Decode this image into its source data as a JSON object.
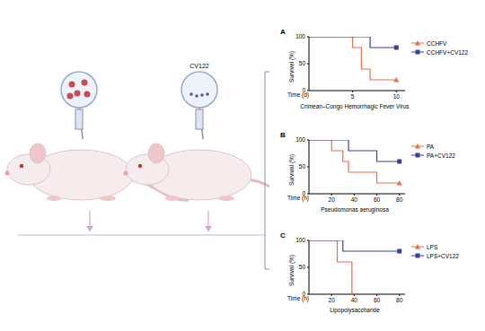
{
  "illustration": {
    "label": "CV122"
  },
  "chart_data": [
    {
      "type": "line",
      "panel_label": "A",
      "title": "Crimean–Congo Hemorrhagic Fever Virus",
      "xlabel": "Time (d)",
      "ylabel": "Survival (%)",
      "line_style": "step",
      "legend": "right",
      "xlim": [
        0,
        11
      ],
      "xticks": [
        5,
        10
      ],
      "ylim": [
        0,
        100
      ],
      "yticks": [
        0,
        50,
        100
      ],
      "series": [
        {
          "name": "CCHFV",
          "color": "#f26b4a",
          "marker": "triangle",
          "x": [
            0,
            5,
            6,
            7,
            10
          ],
          "values": [
            100,
            80,
            40,
            20,
            20
          ]
        },
        {
          "name": "CCHFV+CV122",
          "color": "#3d3f9b",
          "marker": "square",
          "x": [
            0,
            7,
            10
          ],
          "values": [
            100,
            80,
            80
          ]
        }
      ]
    },
    {
      "type": "line",
      "panel_label": "B",
      "title": "Pseudomonas aeruginosa",
      "xlabel": "Time (h)",
      "ylabel": "Survival (%)",
      "line_style": "step",
      "legend": "right",
      "xlim": [
        0,
        85
      ],
      "xticks": [
        20,
        40,
        60,
        80
      ],
      "ylim": [
        0,
        100
      ],
      "yticks": [
        0,
        50,
        100
      ],
      "series": [
        {
          "name": "PA",
          "color": "#f26b4a",
          "marker": "triangle",
          "x": [
            0,
            20,
            30,
            35,
            60,
            80
          ],
          "values": [
            100,
            80,
            60,
            40,
            20,
            20
          ]
        },
        {
          "name": "PA+CV122",
          "color": "#3d3f9b",
          "marker": "square",
          "x": [
            0,
            35,
            60,
            80
          ],
          "values": [
            100,
            80,
            60,
            60
          ]
        }
      ]
    },
    {
      "type": "line",
      "panel_label": "C",
      "title": "Lipopolysaccharide",
      "xlabel": "Time (h)",
      "ylabel": "Survival (%)",
      "line_style": "step",
      "legend": "right",
      "xlim": [
        0,
        85
      ],
      "xticks": [
        20,
        40,
        60,
        80
      ],
      "ylim": [
        0,
        100
      ],
      "yticks": [
        0,
        50,
        100
      ],
      "series": [
        {
          "name": "LPS",
          "color": "#f26b4a",
          "marker": "triangle",
          "x": [
            0,
            25,
            38
          ],
          "values": [
            100,
            60,
            0
          ]
        },
        {
          "name": "LPS+CV122",
          "color": "#3d3f9b",
          "marker": "square",
          "x": [
            0,
            30,
            80
          ],
          "values": [
            100,
            80,
            80
          ]
        }
      ]
    }
  ]
}
